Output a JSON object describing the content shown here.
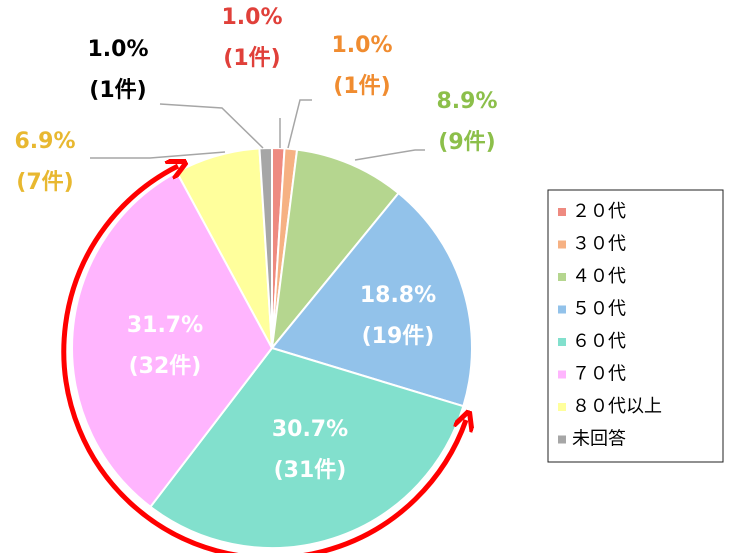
{
  "chart_data": {
    "type": "pie",
    "categories": [
      "２０代",
      "３０代",
      "４０代",
      "５０代",
      "６０代",
      "７０代",
      "８０代以上",
      "未回答"
    ],
    "values": [
      1.0,
      1.0,
      8.9,
      18.8,
      30.7,
      31.7,
      6.9,
      1.0
    ],
    "value_labels": [
      "1.0%",
      "1.0%",
      "8.9%",
      "18.8%",
      "30.7%",
      "31.7%",
      "6.9%",
      "1.0%"
    ],
    "count_labels": [
      "(1件)",
      "(1件)",
      "(9件)",
      "(19件)",
      "(31件)",
      "(32件)",
      "(7件)",
      "(1件)"
    ],
    "colors": [
      "#ee8a80",
      "#f6b183",
      "#b5d68f",
      "#92c2ea",
      "#82e0cd",
      "#ffb5fe",
      "#ffff9c",
      "#a6a6a6"
    ],
    "legend": "right"
  }
}
